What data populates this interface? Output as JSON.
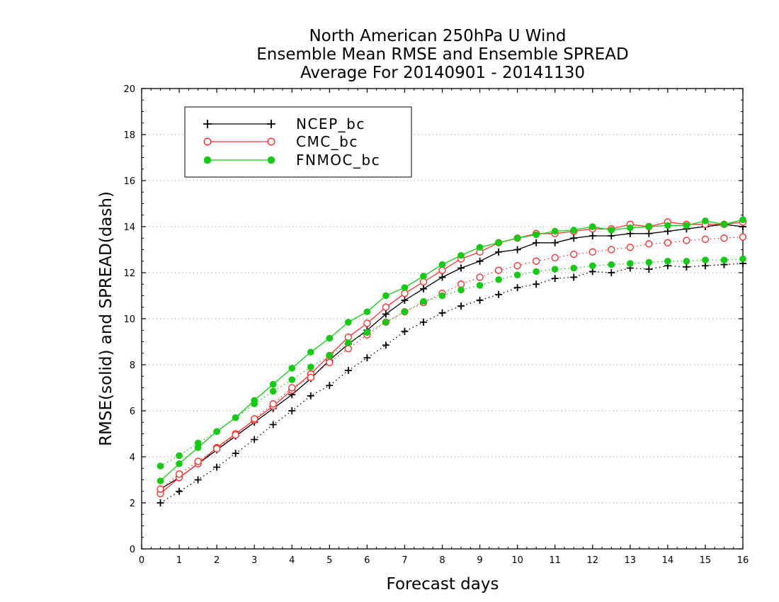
{
  "chart_data": {
    "type": "line",
    "title_lines": [
      "North American 250hPa U Wind",
      "Ensemble Mean RMSE and Ensemble SPREAD",
      "Average For 20140901 - 20141130"
    ],
    "xlabel": "Forecast days",
    "ylabel": "RMSE(solid) and SPREAD(dash)",
    "xlim": [
      0,
      16
    ],
    "ylim": [
      0,
      20
    ],
    "xticks": [
      "0",
      "1",
      "2",
      "3",
      "4",
      "5",
      "6",
      "7",
      "8",
      "9",
      "10",
      "11",
      "12",
      "13",
      "14",
      "15",
      "16"
    ],
    "yticks": [
      "0",
      "2",
      "4",
      "6",
      "8",
      "10",
      "12",
      "14",
      "16",
      "18",
      "20"
    ],
    "grid": "horizontal dotted",
    "legend_position": "top-left",
    "x": [
      0.5,
      1,
      1.5,
      2,
      2.5,
      3,
      3.5,
      4,
      4.5,
      5,
      5.5,
      6,
      6.5,
      7,
      7.5,
      8,
      8.5,
      9,
      9.5,
      10,
      10.5,
      11,
      11.5,
      12,
      12.5,
      13,
      13.5,
      14,
      14.5,
      15,
      15.5,
      16
    ],
    "series": [
      {
        "name": "NCEP_bc",
        "color": "#000000",
        "marker": "plus",
        "metric": "RMSE",
        "style": "solid",
        "values": [
          2.6,
          3.1,
          3.7,
          4.3,
          4.9,
          5.5,
          6.1,
          6.7,
          7.4,
          8.2,
          8.9,
          9.5,
          10.2,
          10.8,
          11.3,
          11.8,
          12.2,
          12.5,
          12.9,
          13.0,
          13.3,
          13.3,
          13.5,
          13.6,
          13.6,
          13.7,
          13.7,
          13.8,
          13.9,
          14.0,
          14.1,
          14.0
        ]
      },
      {
        "name": "CMC_bc",
        "color": "#ff3333",
        "marker": "open-circle",
        "metric": "RMSE",
        "style": "solid",
        "values": [
          2.4,
          3.1,
          3.7,
          4.4,
          5.0,
          5.6,
          6.2,
          6.9,
          7.6,
          8.4,
          9.2,
          9.8,
          10.5,
          11.1,
          11.6,
          12.1,
          12.6,
          12.9,
          13.3,
          13.5,
          13.7,
          13.7,
          13.8,
          13.9,
          13.9,
          14.1,
          14.0,
          14.2,
          14.1,
          14.1,
          14.1,
          14.2
        ]
      },
      {
        "name": "FNMOC_bc",
        "color": "#11cc11",
        "marker": "filled-circle",
        "metric": "RMSE",
        "style": "solid",
        "values": [
          2.95,
          3.7,
          4.4,
          5.1,
          5.7,
          6.45,
          7.15,
          7.85,
          8.55,
          9.15,
          9.85,
          10.3,
          11.0,
          11.35,
          11.85,
          12.35,
          12.75,
          13.1,
          13.3,
          13.5,
          13.65,
          13.8,
          13.85,
          14.0,
          13.85,
          13.95,
          14.0,
          14.05,
          14.05,
          14.25,
          14.1,
          14.3
        ]
      },
      {
        "name": "NCEP_bc",
        "color": "#000000",
        "marker": "plus",
        "metric": "SPREAD",
        "style": "dash",
        "values": [
          2.0,
          2.5,
          3.0,
          3.55,
          4.15,
          4.75,
          5.4,
          6.0,
          6.65,
          7.1,
          7.75,
          8.3,
          8.85,
          9.45,
          9.85,
          10.25,
          10.55,
          10.8,
          11.05,
          11.35,
          11.5,
          11.75,
          11.8,
          12.05,
          12.0,
          12.2,
          12.15,
          12.3,
          12.25,
          12.3,
          12.35,
          12.4
        ]
      },
      {
        "name": "CMC_bc",
        "color": "#ff3333",
        "marker": "open-circle",
        "metric": "SPREAD",
        "style": "dash",
        "values": [
          2.6,
          3.25,
          3.8,
          4.35,
          4.95,
          5.65,
          6.3,
          7.0,
          7.45,
          8.1,
          8.7,
          9.3,
          9.85,
          10.3,
          10.7,
          11.1,
          11.5,
          11.8,
          12.1,
          12.3,
          12.5,
          12.65,
          12.8,
          12.9,
          13.0,
          13.1,
          13.25,
          13.3,
          13.4,
          13.45,
          13.5,
          13.55
        ]
      },
      {
        "name": "FNMOC_bc",
        "color": "#11cc11",
        "marker": "filled-circle",
        "metric": "SPREAD",
        "style": "dash",
        "values": [
          3.6,
          4.05,
          4.6,
          5.1,
          5.7,
          6.3,
          6.85,
          7.35,
          7.9,
          8.4,
          8.95,
          9.4,
          9.85,
          10.3,
          10.75,
          11.0,
          11.25,
          11.45,
          11.7,
          11.9,
          12.05,
          12.15,
          12.2,
          12.3,
          12.35,
          12.4,
          12.45,
          12.5,
          12.5,
          12.55,
          12.55,
          12.6
        ]
      }
    ]
  }
}
